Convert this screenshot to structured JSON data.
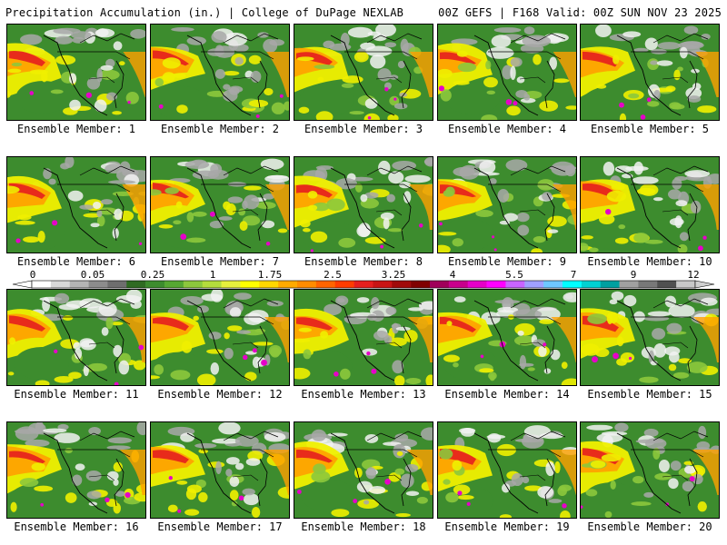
{
  "header": {
    "left_title": "Precipitation Accumulation (in.) | College of DuPage NEXLAB",
    "right_title": "00Z GEFS | F168 Valid: 00Z SUN NOV 23 2025"
  },
  "panels": [
    {
      "label": "Ensemble Member: 1"
    },
    {
      "label": "Ensemble Member: 2"
    },
    {
      "label": "Ensemble Member: 3"
    },
    {
      "label": "Ensemble Member: 4"
    },
    {
      "label": "Ensemble Member: 5"
    },
    {
      "label": "Ensemble Member: 6"
    },
    {
      "label": "Ensemble Member: 7"
    },
    {
      "label": "Ensemble Member: 8"
    },
    {
      "label": "Ensemble Member: 9"
    },
    {
      "label": "Ensemble Member: 10"
    },
    {
      "label": "Ensemble Member: 11"
    },
    {
      "label": "Ensemble Member: 12"
    },
    {
      "label": "Ensemble Member: 13"
    },
    {
      "label": "Ensemble Member: 14"
    },
    {
      "label": "Ensemble Member: 15"
    },
    {
      "label": "Ensemble Member: 16"
    },
    {
      "label": "Ensemble Member: 17"
    },
    {
      "label": "Ensemble Member: 18"
    },
    {
      "label": "Ensemble Member: 19"
    },
    {
      "label": "Ensemble Member: 20"
    }
  ],
  "colorbar": {
    "tick_labels": [
      "0",
      "0.05",
      "0.25",
      "1",
      "1.75",
      "2.5",
      "3.25",
      "4",
      "5.5",
      "7",
      "9",
      "12"
    ],
    "colors": [
      "#ffffff",
      "#d8d8d8",
      "#b4b4b4",
      "#8c8c8c",
      "#6e6e6e",
      "#2f6b22",
      "#3d8c2e",
      "#56a832",
      "#8cc83c",
      "#b4dc3c",
      "#e6f03c",
      "#ffff00",
      "#ffd700",
      "#ffaa00",
      "#ff8c00",
      "#ff6400",
      "#ff3c00",
      "#e61e1e",
      "#c81414",
      "#a00a0a",
      "#800000",
      "#a0005a",
      "#c8008c",
      "#e600c8",
      "#ff00ff",
      "#c864ff",
      "#a0a0ff",
      "#6ec8ff",
      "#00ffff",
      "#00d2d2",
      "#00a0a0",
      "#a0a0a0",
      "#787878",
      "#505050",
      "#c8c8c8"
    ]
  },
  "map_palette": {
    "land": "#3d8c2e",
    "light": "#8cc83c",
    "yellow": "#f0f000",
    "orange": "#ffa000",
    "red": "#e61e1e",
    "magenta": "#e600c8",
    "grey": "#a8a8a8",
    "white": "#f2f2f2",
    "borders": "#000000"
  }
}
